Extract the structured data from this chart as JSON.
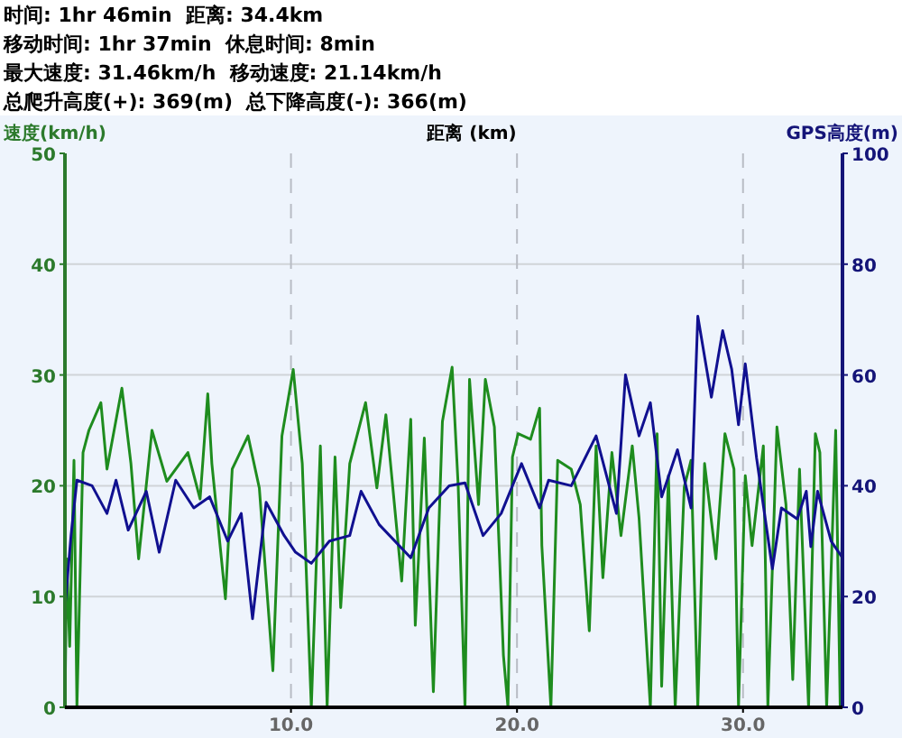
{
  "chart_data": {
    "type": "line",
    "xlabel": "距离 (km)",
    "ylabel": "速度(km/h)",
    "y2label": "GPS高度(m)",
    "annotations": [
      "时间: 1hr 46min  距离: 34.4km",
      "移动时间: 1hr 37min  休息时间: 8min",
      "最大速度: 31.46km/h  移动速度: 21.14km/h",
      "总爬升高度(+): 369(m)  总下降高度(-): 366(m)"
    ],
    "xlim": [
      0,
      34.4
    ],
    "xticks": [
      {
        "value": 10,
        "label": "10.0"
      },
      {
        "value": 20,
        "label": "20.0"
      },
      {
        "value": 30,
        "label": "30.0"
      }
    ],
    "ylim": [
      0,
      50
    ],
    "yticks": [
      0,
      10,
      20,
      30,
      40,
      50
    ],
    "y2lim": [
      0,
      100
    ],
    "y2ticks": [
      0,
      20,
      40,
      60,
      80,
      100
    ],
    "grid": true,
    "series": [
      {
        "color": "#1e8c1e",
        "x": [
          0,
          0.08,
          0.21,
          0.4,
          0.53,
          0.8,
          1.06,
          1.59,
          1.86,
          2.52,
          2.92,
          3.26,
          3.85,
          4.51,
          5.44,
          5.98,
          6.32,
          6.5,
          7.1,
          7.4,
          8.1,
          8.6,
          9.2,
          9.6,
          10.1,
          10.5,
          10.9,
          11.3,
          11.6,
          11.95,
          12.2,
          12.6,
          13.3,
          13.8,
          14.2,
          14.9,
          15.3,
          15.5,
          15.9,
          16.3,
          16.7,
          17.13,
          17.4,
          17.7,
          17.9,
          18.3,
          18.6,
          19.0,
          19.4,
          19.6,
          19.8,
          20.05,
          20.6,
          21.0,
          21.1,
          21.5,
          21.8,
          22.4,
          22.8,
          23.2,
          23.5,
          23.8,
          24.2,
          24.6,
          25.1,
          25.4,
          25.9,
          26.2,
          26.4,
          26.7,
          27.0,
          27.4,
          27.7,
          28.0,
          28.3,
          28.8,
          29.2,
          29.6,
          29.8,
          30.1,
          30.4,
          30.9,
          31.1,
          31.5,
          31.9,
          32.2,
          32.5,
          32.9,
          33.2,
          33.4,
          33.7,
          34.1,
          34.3,
          34.4
        ],
        "values": [
          0,
          13.4,
          5.5,
          22.3,
          0,
          23,
          25,
          27.5,
          21.5,
          28.8,
          22,
          13.4,
          25,
          20.4,
          23,
          18.8,
          28.3,
          22,
          9.8,
          21.5,
          24.5,
          19.8,
          3.3,
          24.5,
          30.5,
          22,
          0,
          23.6,
          0,
          22.6,
          9,
          22,
          27.5,
          19.8,
          26.4,
          11.4,
          26,
          7.4,
          24.3,
          1.4,
          25.8,
          30.7,
          19.9,
          0,
          29.6,
          18.3,
          29.6,
          25.3,
          4.7,
          0,
          22.6,
          24.7,
          24.2,
          27,
          14.6,
          0,
          22.3,
          21.5,
          18.3,
          6.9,
          23.6,
          11.7,
          23,
          15.5,
          23.6,
          17.1,
          0,
          24.7,
          1.9,
          20.9,
          0,
          19.9,
          22.3,
          0,
          22,
          13.4,
          24.7,
          21.5,
          0,
          20.9,
          14.6,
          23.6,
          0,
          25.3,
          18.3,
          2.5,
          21.5,
          0,
          24.7,
          23,
          0,
          25,
          0,
          19.9
        ]
      },
      {
        "color": "#101090",
        "axis": "y2",
        "x": [
          0,
          0.27,
          0.53,
          1.2,
          1.86,
          2.26,
          2.8,
          3.6,
          4.17,
          4.9,
          5.7,
          6.4,
          7.2,
          7.8,
          8.3,
          8.9,
          9.7,
          10.2,
          10.9,
          11.7,
          12.6,
          13.1,
          13.9,
          15.3,
          16.1,
          17.0,
          17.7,
          18.5,
          19.3,
          20.2,
          21.0,
          21.4,
          22.4,
          23.5,
          24.4,
          24.8,
          25.4,
          25.9,
          26.4,
          27.1,
          27.7,
          28.0,
          28.6,
          29.1,
          29.5,
          29.8,
          30.1,
          30.6,
          31.3,
          31.7,
          32.4,
          32.8,
          33.0,
          33.3,
          33.9,
          34.4
        ],
        "values": [
          18,
          31,
          41,
          40,
          35,
          41,
          32,
          39,
          28,
          41,
          36,
          38,
          30,
          35,
          16,
          37,
          31,
          28,
          26,
          30,
          31,
          39,
          33,
          27,
          36,
          40,
          40.5,
          31,
          35,
          44,
          36,
          41,
          40,
          49,
          35,
          60,
          49,
          55,
          38,
          46.5,
          36,
          70.6,
          56,
          68,
          61,
          51,
          62,
          45,
          25,
          36,
          34,
          39,
          29,
          39,
          30,
          27
        ]
      }
    ]
  }
}
